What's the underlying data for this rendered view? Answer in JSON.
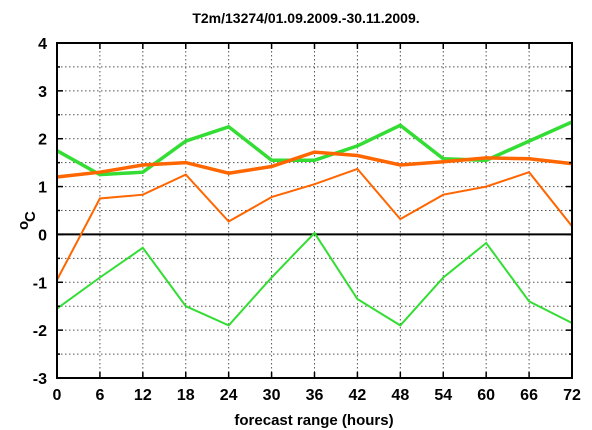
{
  "chart_data": {
    "type": "line",
    "title": "T2m/13274/01.09.2009.-30.11.2009.",
    "xlabel": "forecast range (hours)",
    "ylabel_main": "o",
    "ylabel_unit": "C",
    "xlim": [
      0,
      72
    ],
    "ylim": [
      -3,
      4
    ],
    "xticks": [
      "0",
      "6",
      "12",
      "18",
      "24",
      "30",
      "36",
      "42",
      "48",
      "54",
      "60",
      "66",
      "72"
    ],
    "yticks": [
      "4",
      "3",
      "2",
      "1",
      "0",
      "-1",
      "-2",
      "-3"
    ],
    "grid": true,
    "x": [
      0,
      6,
      12,
      18,
      24,
      30,
      36,
      42,
      48,
      54,
      60,
      66,
      72
    ],
    "series": [
      {
        "color": "#33dd33",
        "width": 3.5,
        "values": [
          1.75,
          1.25,
          1.3,
          1.95,
          2.25,
          1.55,
          1.55,
          1.85,
          2.28,
          1.58,
          1.55,
          1.95,
          2.35
        ]
      },
      {
        "color": "#33dd33",
        "width": 2,
        "values": [
          -1.55,
          -0.9,
          -0.28,
          -1.5,
          -1.9,
          -0.9,
          0.03,
          -1.35,
          -1.9,
          -0.9,
          -0.18,
          -1.4,
          -1.85
        ]
      },
      {
        "color": "#ff6600",
        "width": 3.5,
        "values": [
          1.2,
          1.3,
          1.45,
          1.5,
          1.28,
          1.42,
          1.72,
          1.65,
          1.45,
          1.52,
          1.6,
          1.58,
          1.48
        ]
      },
      {
        "color": "#ff6600",
        "width": 2,
        "values": [
          -0.95,
          0.75,
          0.83,
          1.25,
          0.27,
          0.78,
          1.05,
          1.37,
          0.32,
          0.83,
          1.0,
          1.3,
          0.17
        ]
      }
    ]
  }
}
